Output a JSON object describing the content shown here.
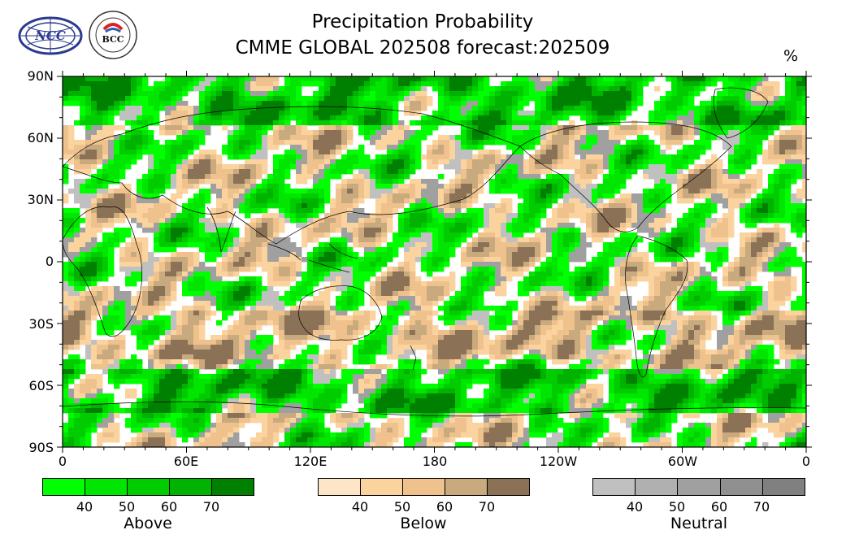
{
  "title_line1": "Precipitation Probability",
  "title_line2": "CMME GLOBAL 202508 forecast:202509",
  "unit": "%",
  "logos": {
    "ncc_text": "NCC",
    "bcc_text": "BCC"
  },
  "lat_labels": [
    "90N",
    "60N",
    "30N",
    "0",
    "30S",
    "60S",
    "90S"
  ],
  "lon_labels": [
    "0",
    "60E",
    "120E",
    "180",
    "120W",
    "60W",
    "0"
  ],
  "colorbars": [
    {
      "name": "Above",
      "colors": [
        "#00ff00",
        "#00e600",
        "#00cc00",
        "#00b300",
        "#008000"
      ],
      "ticks": [
        "40",
        "50",
        "60",
        "70"
      ]
    },
    {
      "name": "Below",
      "colors": [
        "#fde5c8",
        "#fbd39e",
        "#efc28d",
        "#c9a97e",
        "#8b7155"
      ],
      "ticks": [
        "40",
        "50",
        "60",
        "70"
      ]
    },
    {
      "name": "Neutral",
      "colors": [
        "#c0c0c0",
        "#b0b0b0",
        "#a0a0a0",
        "#909090",
        "#808080"
      ],
      "ticks": [
        "40",
        "50",
        "60",
        "70"
      ]
    }
  ]
}
